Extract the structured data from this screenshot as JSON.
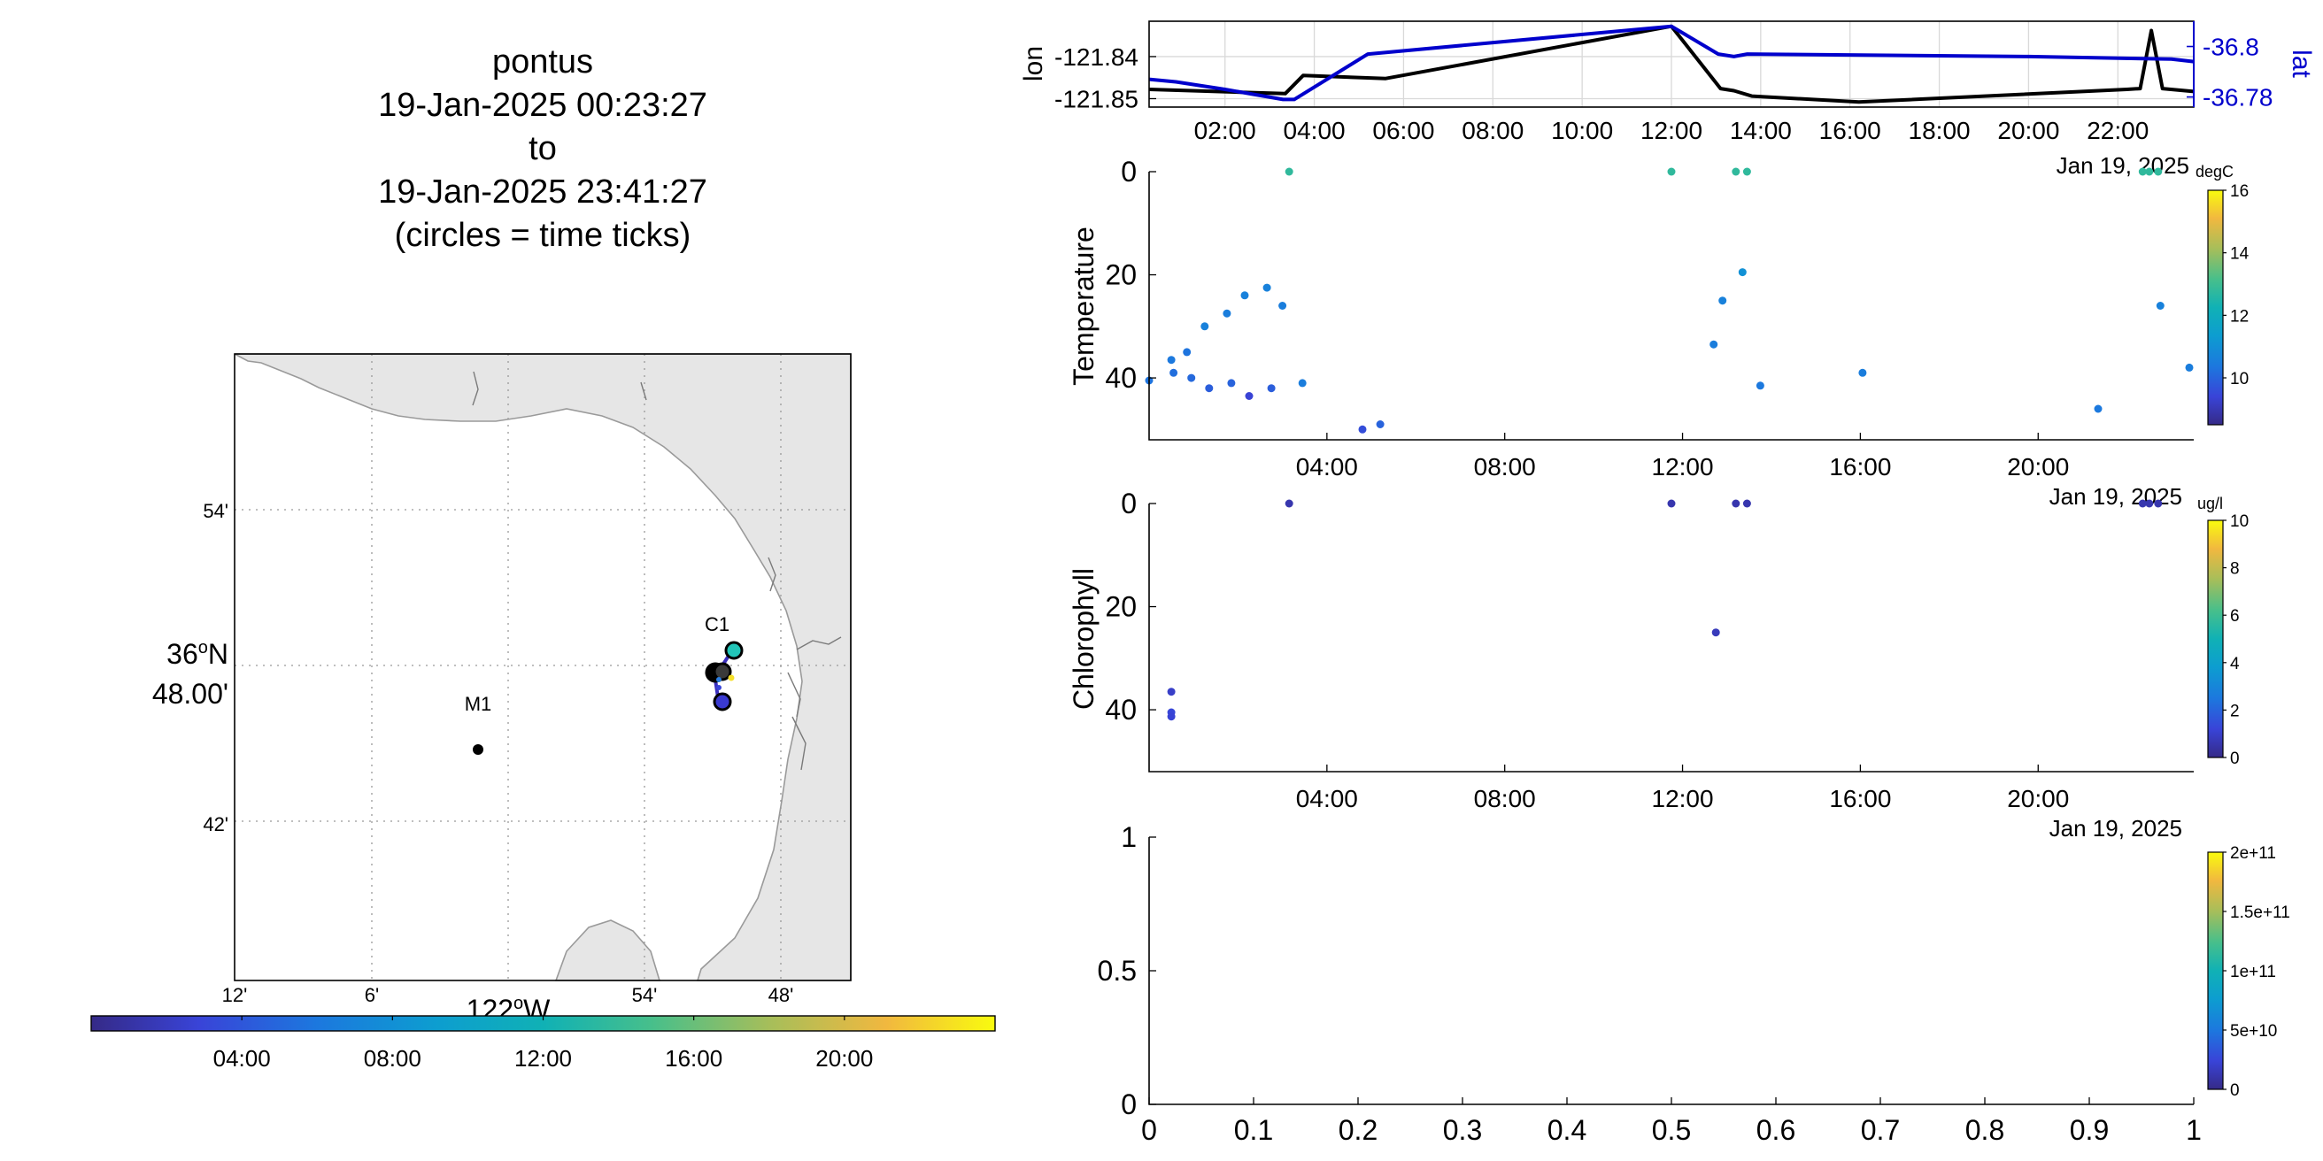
{
  "title_block": {
    "lines": [
      "pontus",
      "19-Jan-2025 00:23:27",
      "to",
      "19-Jan-2025 23:41:27",
      "(circles = time ticks)"
    ]
  },
  "map": {
    "lat_ticks": [
      "54'",
      "42'"
    ],
    "lat_center_label_deg": "36",
    "lat_center_label_hemi": "N",
    "lat_center_label_min": "48.00'",
    "lon_ticks": [
      "12'",
      "6'",
      "54'",
      "48'"
    ],
    "lon_center_label_deg": "122",
    "lon_center_label_hemi": "W",
    "stations": [
      {
        "name": "M1"
      },
      {
        "name": "C1"
      }
    ],
    "colors": {
      "land": "#e6e6e6",
      "coast": "#9a9a9a",
      "track_start": "#3b2fbe",
      "track_end": "#f5e02a"
    }
  },
  "time_colorbar": {
    "ticks": [
      "04:00",
      "08:00",
      "12:00",
      "16:00",
      "20:00"
    ],
    "tick_hours": [
      4,
      8,
      12,
      16,
      20
    ],
    "range_hours": [
      0,
      24
    ]
  },
  "chart_data": [
    {
      "type": "line",
      "name": "position",
      "x_unit": "hour of 19-Jan-2025",
      "xlim": [
        0.3,
        23.7
      ],
      "x_ticks": [
        "02:00",
        "04:00",
        "06:00",
        "08:00",
        "10:00",
        "12:00",
        "14:00",
        "16:00",
        "18:00",
        "20:00",
        "22:00"
      ],
      "x_tick_hours": [
        2,
        4,
        6,
        8,
        10,
        12,
        14,
        16,
        18,
        20,
        22
      ],
      "date_label": "Jan 19, 2025",
      "ylabel_left": "lon",
      "ylabel_right": "lat",
      "left_ticks": [
        "-121.84",
        "-121.85"
      ],
      "left_tick_values": [
        -121.84,
        -121.85
      ],
      "left_ylim": [
        -121.852,
        -121.8316
      ],
      "right_ticks": [
        "36.8",
        "36.78"
      ],
      "right_tick_values": [
        36.8,
        36.78
      ],
      "right_ylim": [
        36.776,
        36.81
      ],
      "grid": true,
      "series": [
        {
          "name": "lon",
          "axis": "left",
          "color": "#000000",
          "x": [
            0.3,
            3.35,
            3.75,
            5.6,
            12.0,
            13.1,
            13.4,
            13.8,
            16.2,
            22.2,
            22.5,
            22.75,
            23.0,
            23.7
          ],
          "y": [
            -121.8478,
            -121.8488,
            -121.8445,
            -121.8452,
            -121.8328,
            -121.8476,
            -121.8481,
            -121.8494,
            -121.8508,
            -121.8478,
            -121.8476,
            -121.8338,
            -121.8476,
            -121.8483
          ]
        },
        {
          "name": "lat",
          "axis": "right",
          "color": "#0000cc",
          "x": [
            0.3,
            0.9,
            2.0,
            3.3,
            3.55,
            5.2,
            12.0,
            13.05,
            13.4,
            13.7,
            20.0,
            23.2,
            23.7
          ],
          "y": [
            36.787,
            36.786,
            36.783,
            36.779,
            36.779,
            36.797,
            36.808,
            36.797,
            36.796,
            36.797,
            36.796,
            36.795,
            36.794
          ]
        }
      ]
    },
    {
      "type": "scatter",
      "name": "temperature",
      "ylabel": "Temperature",
      "x_unit": "hour of 19-Jan-2025",
      "xlim": [
        0,
        23.5
      ],
      "ylim": [
        52,
        0
      ],
      "y_ticks": [
        "0",
        "20",
        "40"
      ],
      "y_tick_values": [
        0,
        20,
        40
      ],
      "x_ticks": [
        "04:00",
        "08:00",
        "12:00",
        "16:00",
        "20:00"
      ],
      "x_tick_hours": [
        4,
        8,
        12,
        16,
        20
      ],
      "date_label": "Jan 19, 2025",
      "colorbar": {
        "unit": "degC",
        "ticks": [
          "10",
          "12",
          "14",
          "16"
        ],
        "tick_values": [
          10,
          12,
          14,
          16
        ],
        "range": [
          8.5,
          16
        ]
      },
      "points": [
        {
          "x": 0.0,
          "y": 40.5,
          "c": 10.3
        },
        {
          "x": 0.5,
          "y": 36.5,
          "c": 10.4
        },
        {
          "x": 0.55,
          "y": 39.0,
          "c": 10.2
        },
        {
          "x": 0.85,
          "y": 35.0,
          "c": 10.3
        },
        {
          "x": 0.95,
          "y": 40.0,
          "c": 10.1
        },
        {
          "x": 1.25,
          "y": 30.0,
          "c": 10.6
        },
        {
          "x": 1.35,
          "y": 42.0,
          "c": 9.9
        },
        {
          "x": 1.75,
          "y": 27.5,
          "c": 10.5
        },
        {
          "x": 1.85,
          "y": 41.0,
          "c": 10.0
        },
        {
          "x": 2.15,
          "y": 24.0,
          "c": 10.6
        },
        {
          "x": 2.25,
          "y": 43.5,
          "c": 9.4
        },
        {
          "x": 2.65,
          "y": 22.5,
          "c": 10.6
        },
        {
          "x": 2.75,
          "y": 42.0,
          "c": 9.9
        },
        {
          "x": 3.0,
          "y": 26.0,
          "c": 10.5
        },
        {
          "x": 3.15,
          "y": 0.0,
          "c": 12.8
        },
        {
          "x": 3.45,
          "y": 41.0,
          "c": 10.5
        },
        {
          "x": 4.8,
          "y": 50.0,
          "c": 9.6
        },
        {
          "x": 5.2,
          "y": 49.0,
          "c": 10.0
        },
        {
          "x": 11.75,
          "y": 0.0,
          "c": 12.8
        },
        {
          "x": 12.7,
          "y": 33.5,
          "c": 10.5
        },
        {
          "x": 12.9,
          "y": 25.0,
          "c": 10.6
        },
        {
          "x": 13.2,
          "y": 0.0,
          "c": 12.8
        },
        {
          "x": 13.35,
          "y": 19.5,
          "c": 11.0
        },
        {
          "x": 13.45,
          "y": 0.0,
          "c": 12.8
        },
        {
          "x": 13.75,
          "y": 41.5,
          "c": 10.4
        },
        {
          "x": 16.05,
          "y": 39.0,
          "c": 10.5
        },
        {
          "x": 21.35,
          "y": 46.0,
          "c": 10.4
        },
        {
          "x": 22.35,
          "y": 0.0,
          "c": 12.8
        },
        {
          "x": 22.5,
          "y": 0.0,
          "c": 12.8
        },
        {
          "x": 22.7,
          "y": 0.0,
          "c": 12.8
        },
        {
          "x": 22.75,
          "y": 26.0,
          "c": 10.6
        },
        {
          "x": 23.4,
          "y": 38.0,
          "c": 10.5
        }
      ]
    },
    {
      "type": "scatter",
      "name": "chlorophyll",
      "ylabel": "Chlorophyll",
      "x_unit": "hour of 19-Jan-2025",
      "xlim": [
        0,
        23.5
      ],
      "ylim": [
        52,
        0
      ],
      "y_ticks": [
        "0",
        "20",
        "40"
      ],
      "y_tick_values": [
        0,
        20,
        40
      ],
      "x_ticks": [
        "04:00",
        "08:00",
        "12:00",
        "16:00",
        "20:00"
      ],
      "x_tick_hours": [
        4,
        8,
        12,
        16,
        20
      ],
      "date_label": "Jan 19, 2025",
      "colorbar": {
        "unit": "ug/l",
        "ticks": [
          "0",
          "2",
          "4",
          "6",
          "8",
          "10"
        ],
        "tick_values": [
          0,
          2,
          4,
          6,
          8,
          10
        ],
        "range": [
          0,
          10
        ]
      },
      "points": [
        {
          "x": 0.5,
          "y": 36.5,
          "c": 1.0
        },
        {
          "x": 0.5,
          "y": 40.5,
          "c": 1.3
        },
        {
          "x": 0.5,
          "y": 41.3,
          "c": 1.2
        },
        {
          "x": 3.15,
          "y": 0.0,
          "c": 0.6
        },
        {
          "x": 11.75,
          "y": 0.0,
          "c": 0.6
        },
        {
          "x": 12.75,
          "y": 25.0,
          "c": 0.8
        },
        {
          "x": 13.2,
          "y": 0.0,
          "c": 0.6
        },
        {
          "x": 13.45,
          "y": 0.0,
          "c": 0.6
        },
        {
          "x": 22.35,
          "y": 0.0,
          "c": 0.6
        },
        {
          "x": 22.5,
          "y": 0.0,
          "c": 0.6
        },
        {
          "x": 22.7,
          "y": 0.0,
          "c": 0.6
        }
      ]
    },
    {
      "type": "scatter",
      "name": "empty",
      "xlim": [
        0,
        1
      ],
      "ylim": [
        0,
        1
      ],
      "x_ticks": [
        "0",
        "0.1",
        "0.2",
        "0.3",
        "0.4",
        "0.5",
        "0.6",
        "0.7",
        "0.8",
        "0.9",
        "1"
      ],
      "x_tick_values": [
        0,
        0.1,
        0.2,
        0.3,
        0.4,
        0.5,
        0.6,
        0.7,
        0.8,
        0.9,
        1
      ],
      "y_ticks": [
        "0",
        "0.5",
        "1"
      ],
      "y_tick_values": [
        0,
        0.5,
        1
      ],
      "colorbar": {
        "unit": "",
        "ticks": [
          "0",
          "5e+10",
          "1e+11",
          "1.5e+11",
          "2e+11"
        ],
        "tick_values": [
          0,
          50000000000.0,
          100000000000.0,
          150000000000.0,
          200000000000.0
        ],
        "range": [
          0,
          200000000000.0
        ]
      },
      "points": []
    }
  ]
}
